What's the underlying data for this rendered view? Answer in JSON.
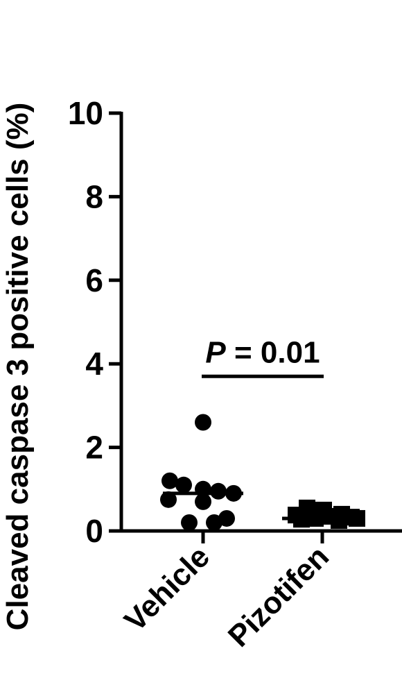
{
  "chart_data": {
    "type": "scatter",
    "ylabel": "Cleaved caspase 3 positive cells (%)",
    "ylim": [
      0,
      10
    ],
    "yticks": [
      0,
      2,
      4,
      6,
      8,
      10
    ],
    "categories": [
      "Vehicle",
      "Pizotifen"
    ],
    "series": [
      {
        "category": "Vehicle",
        "marker": "circle",
        "values": [
          2.6,
          1.2,
          1.1,
          1.0,
          0.95,
          0.9,
          0.75,
          0.7,
          0.3,
          0.2,
          0.2
        ],
        "median": 0.9
      },
      {
        "category": "Pizotifen",
        "marker": "square",
        "values": [
          0.55,
          0.5,
          0.4,
          0.38,
          0.35,
          0.33,
          0.3,
          0.3,
          0.28,
          0.25
        ],
        "median": 0.3
      }
    ],
    "annotation": {
      "p_symbol": "P",
      "text": " = 0.01",
      "between": [
        "Vehicle",
        "Pizotifen"
      ],
      "bar_y": 3.7
    },
    "colors": {
      "marks": "#000000",
      "background": "#ffffff"
    }
  }
}
